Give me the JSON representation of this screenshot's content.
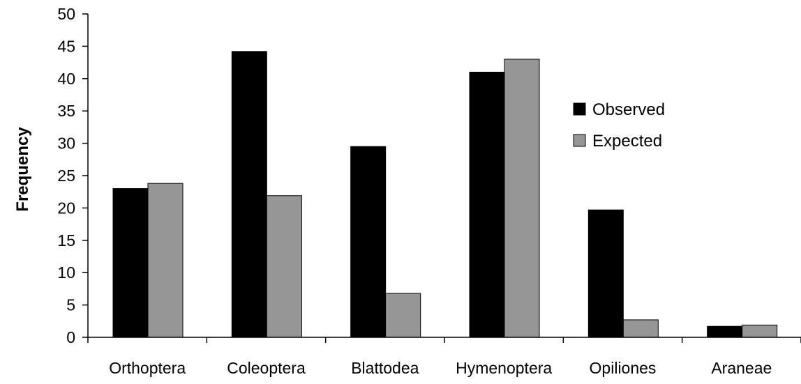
{
  "chart_data": {
    "type": "bar",
    "categories": [
      "Orthoptera",
      "Coleoptera",
      "Blattodea",
      "Hymenoptera",
      "Opiliones",
      "Araneae"
    ],
    "series": [
      {
        "name": "Observed",
        "values": [
          23,
          44.2,
          29.5,
          41,
          19.7,
          1.7
        ],
        "color": "#000000"
      },
      {
        "name": "Expected",
        "values": [
          23.8,
          21.9,
          6.8,
          43,
          2.7,
          1.9
        ],
        "color": "#969696"
      }
    ],
    "ylabel": "Frequency",
    "xlabel": "",
    "ylim": [
      0,
      50
    ],
    "yticks": [
      0,
      5,
      10,
      15,
      20,
      25,
      30,
      35,
      40,
      45,
      50
    ],
    "grid": false,
    "legend_position": "right"
  }
}
